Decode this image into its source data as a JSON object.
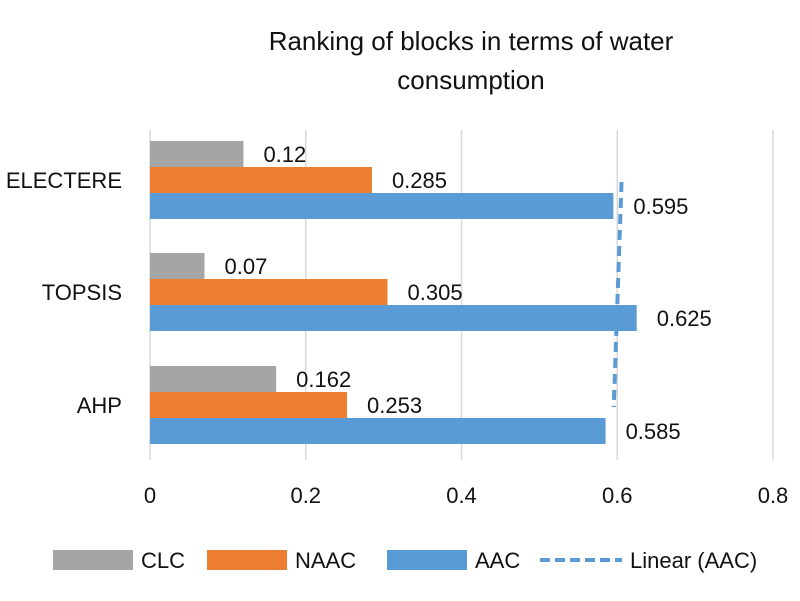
{
  "chart_data": {
    "type": "bar",
    "orientation": "horizontal",
    "title": "Ranking of blocks in terms of water consumption",
    "title_lines": [
      "Ranking of blocks in terms of water",
      "consumption"
    ],
    "categories": [
      "ELECTERE",
      "TOPSIS",
      "AHP"
    ],
    "series": [
      {
        "name": "CLC",
        "values": [
          0.12,
          0.07,
          0.162
        ],
        "labels": [
          "0.12",
          "0.07",
          "0.162"
        ],
        "color": "#a5a5a5"
      },
      {
        "name": "NAAC",
        "values": [
          0.285,
          0.305,
          0.253
        ],
        "labels": [
          "0.285",
          "0.305",
          "0.253"
        ],
        "color": "#ed7d31"
      },
      {
        "name": "AAC",
        "values": [
          0.595,
          0.625,
          0.585
        ],
        "labels": [
          "0.595",
          "0.625",
          "0.585"
        ],
        "color": "#5b9bd5"
      }
    ],
    "trendline": {
      "name": "Linear (AAC)",
      "series": "AAC",
      "style": "dashed",
      "color": "#5b9bd5",
      "start": 0.6055,
      "end": 0.5955
    },
    "xlim": [
      0,
      0.8
    ],
    "xticks": [
      "0",
      "0.2",
      "0.4",
      "0.6",
      "0.8"
    ],
    "xtick_values": [
      0,
      0.2,
      0.4,
      0.6,
      0.8
    ],
    "grid": true,
    "legend_position": "bottom"
  }
}
